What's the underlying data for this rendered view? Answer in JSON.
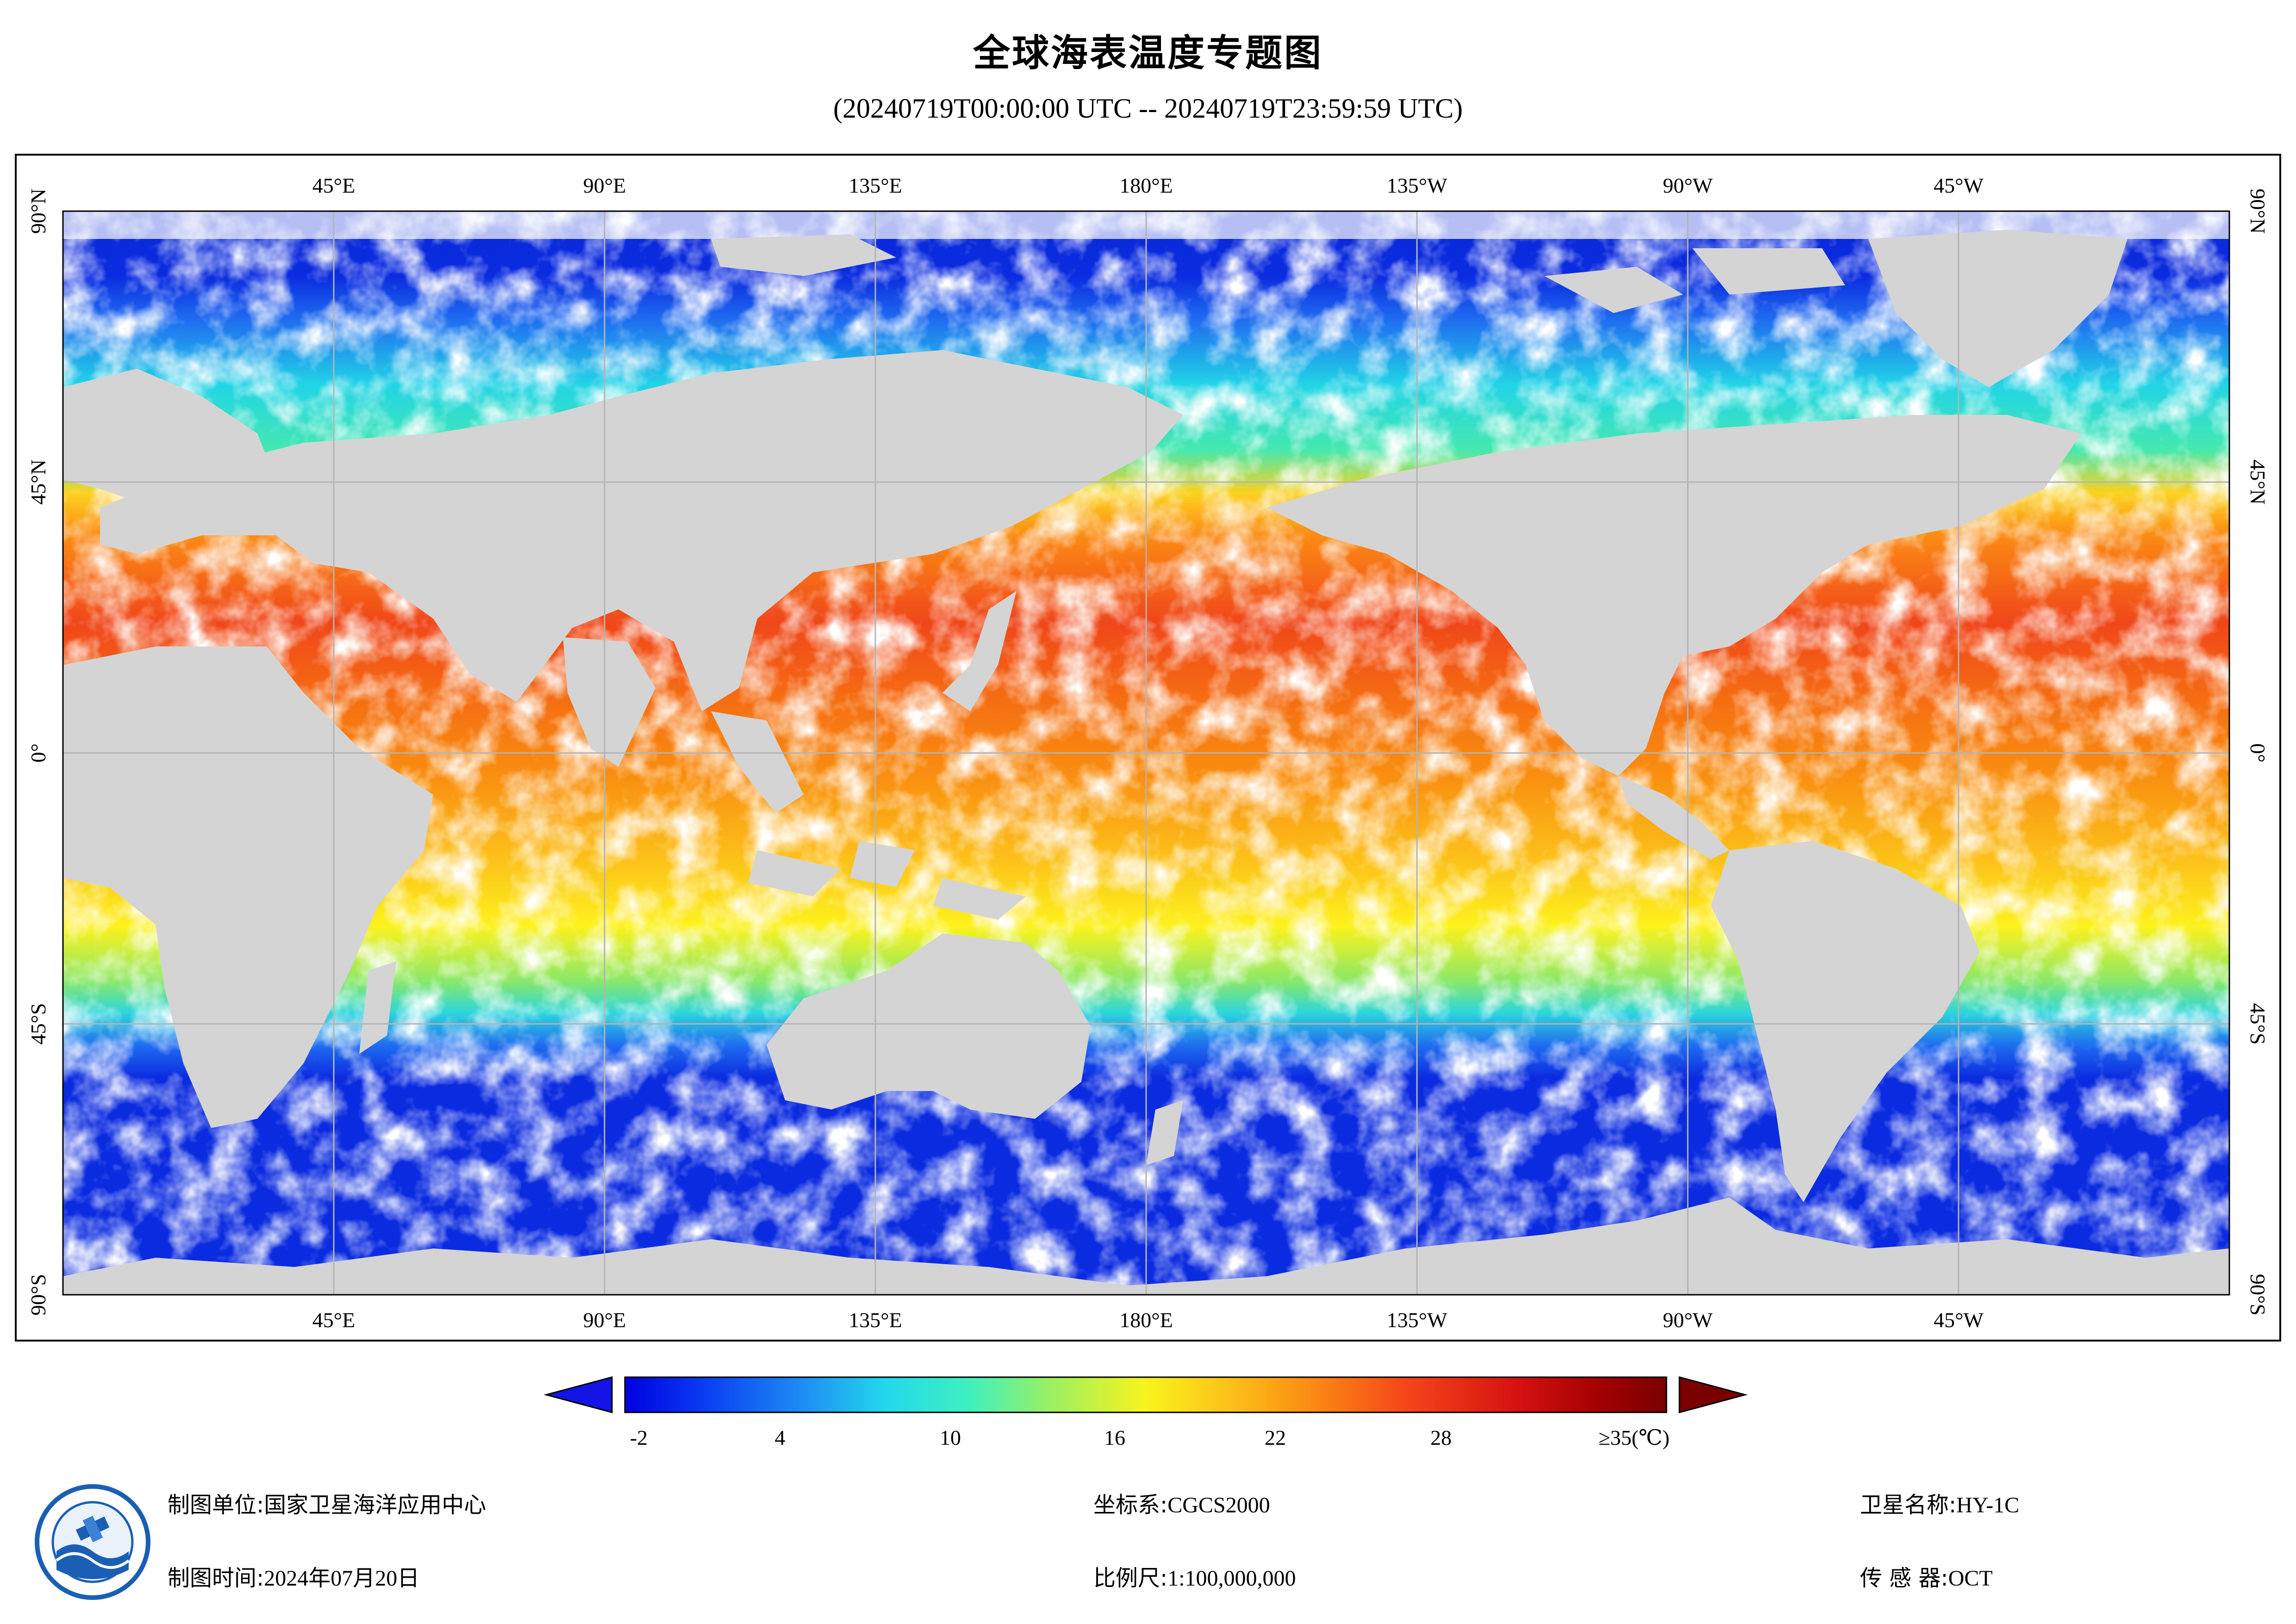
{
  "title": "全球海表温度专题图",
  "time_range": "(20240719T00:00:00 UTC -- 20240719T23:59:59 UTC)",
  "map": {
    "lon_labels": [
      "45°E",
      "90°E",
      "135°E",
      "180°E",
      "135°W",
      "90°W",
      "45°W"
    ],
    "lat_labels": [
      "90°N",
      "45°N",
      "0°",
      "45°S",
      "90°S"
    ],
    "colors": {
      "land": "#d4d4d4",
      "ocean_missing": "#ffffff",
      "grid": "#b4b4b4"
    }
  },
  "colorbar": {
    "tick_labels": [
      "-2",
      "4",
      "10",
      "16",
      "22",
      "28"
    ],
    "max_label": "≥35(℃)",
    "under_color": "#1414e6",
    "over_color": "#7a0000"
  },
  "info": {
    "org_label": "制图单位:",
    "org_value": "国家卫星海洋应用中心",
    "date_label": "制图时间:",
    "date_value": "2024年07月20日",
    "crs_label": "坐标系:",
    "crs_value": "CGCS2000",
    "scale_label": "比例尺:",
    "scale_value": "1:100,000,000",
    "sat_label": "卫星名称:",
    "sat_value": "HY-1C",
    "sensor_label": "传 感 器:",
    "sensor_value": "OCT"
  },
  "logo": {
    "icon": "nsoas-logo-icon"
  }
}
